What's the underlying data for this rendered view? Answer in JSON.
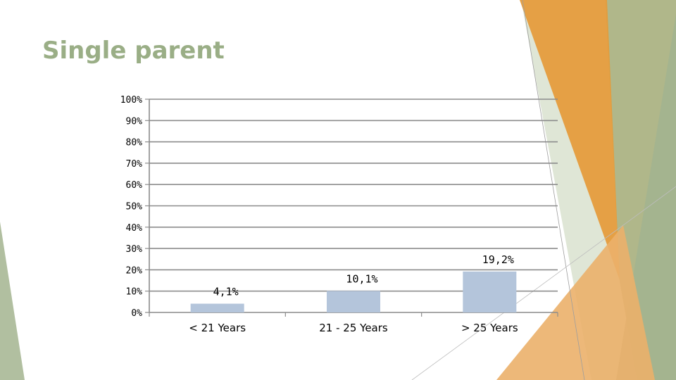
{
  "slide": {
    "title": "Single parent"
  },
  "colors": {
    "bar": "#b4c5db",
    "gridline": "#8c8c8c",
    "title": "#9aae86",
    "accent_orange": "#e59a38",
    "accent_green": "#a3b48f"
  },
  "chart_data": {
    "type": "bar",
    "title": "",
    "xlabel": "",
    "ylabel": "",
    "categories": [
      "< 21 Years",
      "21 - 25 Years",
      "> 25 Years"
    ],
    "values": [
      4.1,
      10.1,
      19.2
    ],
    "data_labels": [
      "4,1%",
      "10,1%",
      "19,2%"
    ],
    "ylim": [
      0,
      100
    ],
    "y_ticks": [
      0,
      10,
      20,
      30,
      40,
      50,
      60,
      70,
      80,
      90,
      100
    ],
    "y_tick_labels": [
      "0%",
      "10%",
      "20%",
      "30%",
      "40%",
      "50%",
      "60%",
      "70%",
      "80%",
      "90%",
      "100%"
    ],
    "grid": true,
    "legend": "none"
  }
}
